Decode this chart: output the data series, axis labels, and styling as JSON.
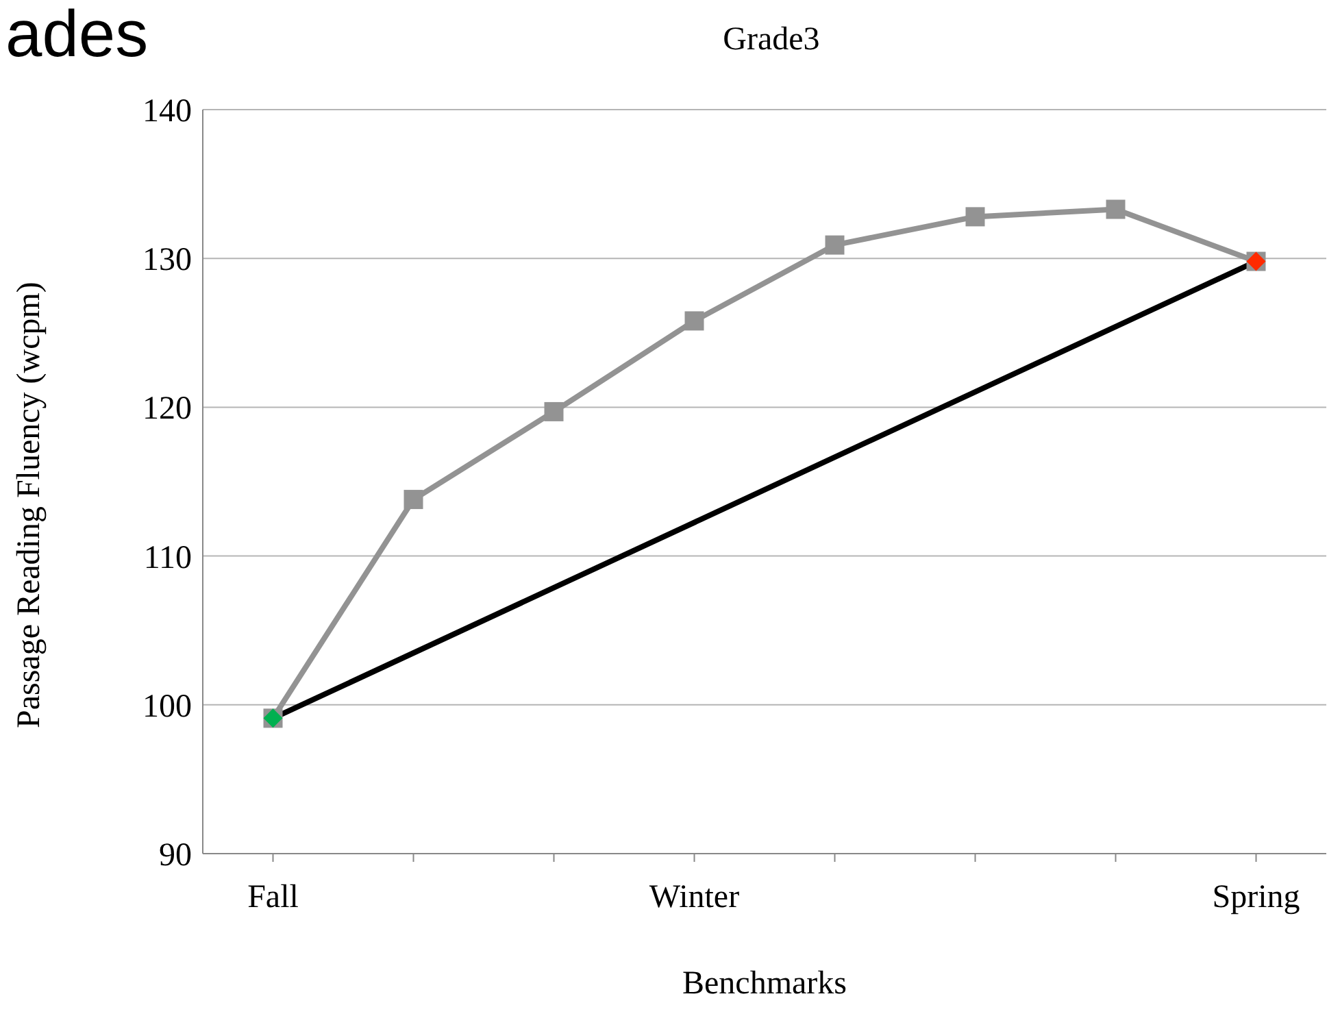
{
  "chart_data": {
    "type": "line",
    "title": "Grade3",
    "xlabel": "Benchmarks",
    "ylabel": "Passage Reading Fluency (wcpm)",
    "annotations": [
      "ades"
    ],
    "categories": [
      "Fall",
      null,
      null,
      "Winter",
      null,
      null,
      null,
      "Spring"
    ],
    "series": [
      {
        "color": "#939393",
        "marker": "square",
        "values": [
          99.1,
          113.8,
          119.7,
          125.8,
          130.9,
          132.8,
          133.3,
          129.8
        ]
      },
      {
        "color": "#000000",
        "marker": "diamond",
        "colors": [
          "#00b050",
          null,
          null,
          null,
          null,
          null,
          null,
          "#ff2a00"
        ],
        "values": [
          99.1,
          null,
          null,
          null,
          null,
          null,
          null,
          129.8
        ]
      }
    ],
    "ylim": [
      90,
      140
    ],
    "yticks": [
      90,
      100,
      110,
      120,
      130,
      140
    ],
    "grid": "y",
    "legend": false,
    "line_style": "solid"
  }
}
